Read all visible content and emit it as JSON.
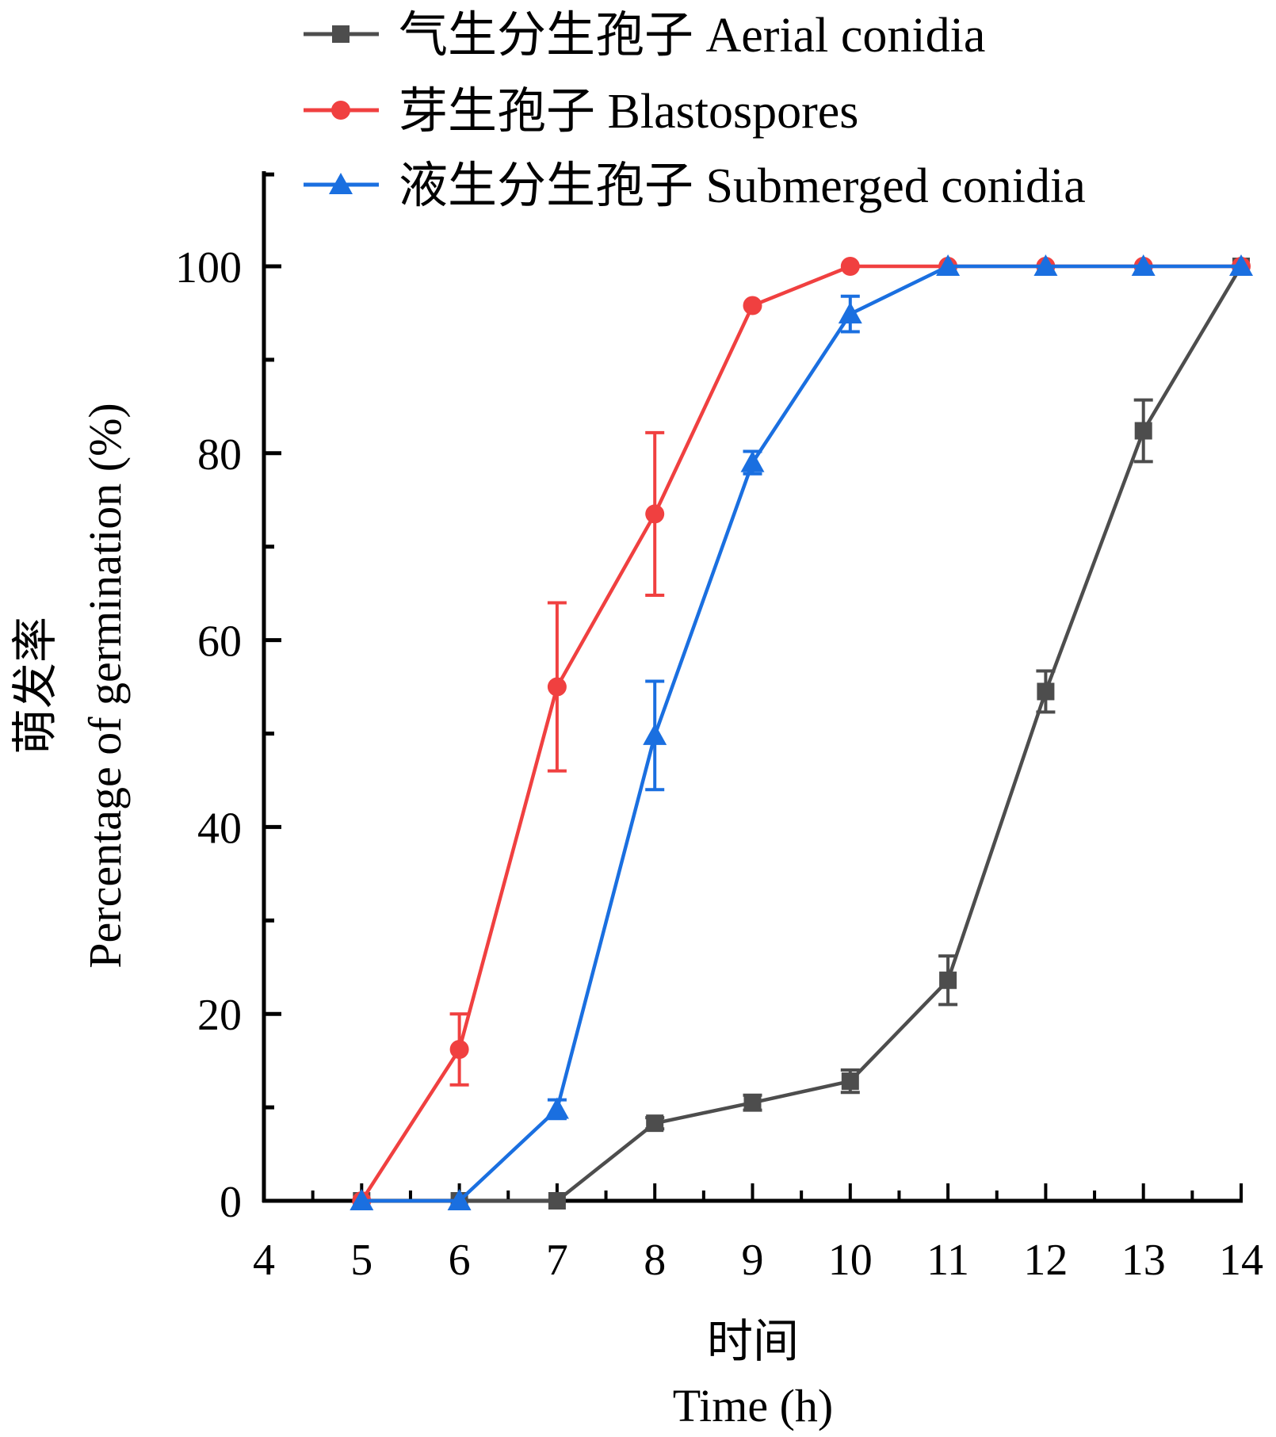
{
  "chart_data": {
    "type": "line",
    "title": "",
    "xlabel_cn": "时间",
    "xlabel": "Time (h)",
    "ylabel_cn": "萌发率",
    "ylabel": "Percentage of germination (%)",
    "xlim": [
      4,
      14
    ],
    "ylim": [
      0,
      110
    ],
    "x_ticks": [
      4,
      5,
      6,
      7,
      8,
      9,
      10,
      11,
      12,
      13,
      14
    ],
    "x_tick_labels": [
      "4",
      "5",
      "6",
      "7",
      "8",
      "9",
      "10",
      "11",
      "12",
      "13",
      "14"
    ],
    "y_ticks": [
      0,
      20,
      40,
      60,
      80,
      100
    ],
    "y_tick_labels": [
      "0",
      "20",
      "40",
      "60",
      "80",
      "100"
    ],
    "y_minor_ticks": [
      10,
      30,
      50,
      70,
      90
    ],
    "grid": false,
    "legend_position": "top",
    "x": [
      5,
      6,
      7,
      8,
      9,
      10,
      11,
      12,
      13,
      14
    ],
    "series": [
      {
        "name": "气生分生孢子 Aerial conidia",
        "color": "#4d4d4d",
        "marker": "square",
        "values": [
          0,
          0,
          0,
          8.3,
          10.5,
          12.8,
          23.6,
          54.5,
          82.4,
          100
        ],
        "errors": [
          0,
          0,
          0,
          0.6,
          0.8,
          1.2,
          2.6,
          2.2,
          3.3,
          0
        ]
      },
      {
        "name": "芽生孢子 Blastospores",
        "color": "#f04040",
        "marker": "circle",
        "values": [
          0,
          16.2,
          55.0,
          73.5,
          95.8,
          100,
          100,
          100,
          100,
          100
        ],
        "errors": [
          0,
          3.8,
          9.0,
          8.7,
          0.4,
          0,
          0,
          0,
          0,
          0
        ]
      },
      {
        "name": "液生分生孢子 Submerged conidia",
        "color": "#1a6fe0",
        "marker": "triangle",
        "values": [
          0,
          0,
          9.8,
          49.8,
          79.0,
          94.9,
          100,
          100,
          100,
          100
        ],
        "errors": [
          0,
          0,
          1.0,
          5.8,
          1.2,
          1.9,
          0,
          0,
          0,
          0
        ]
      }
    ]
  }
}
